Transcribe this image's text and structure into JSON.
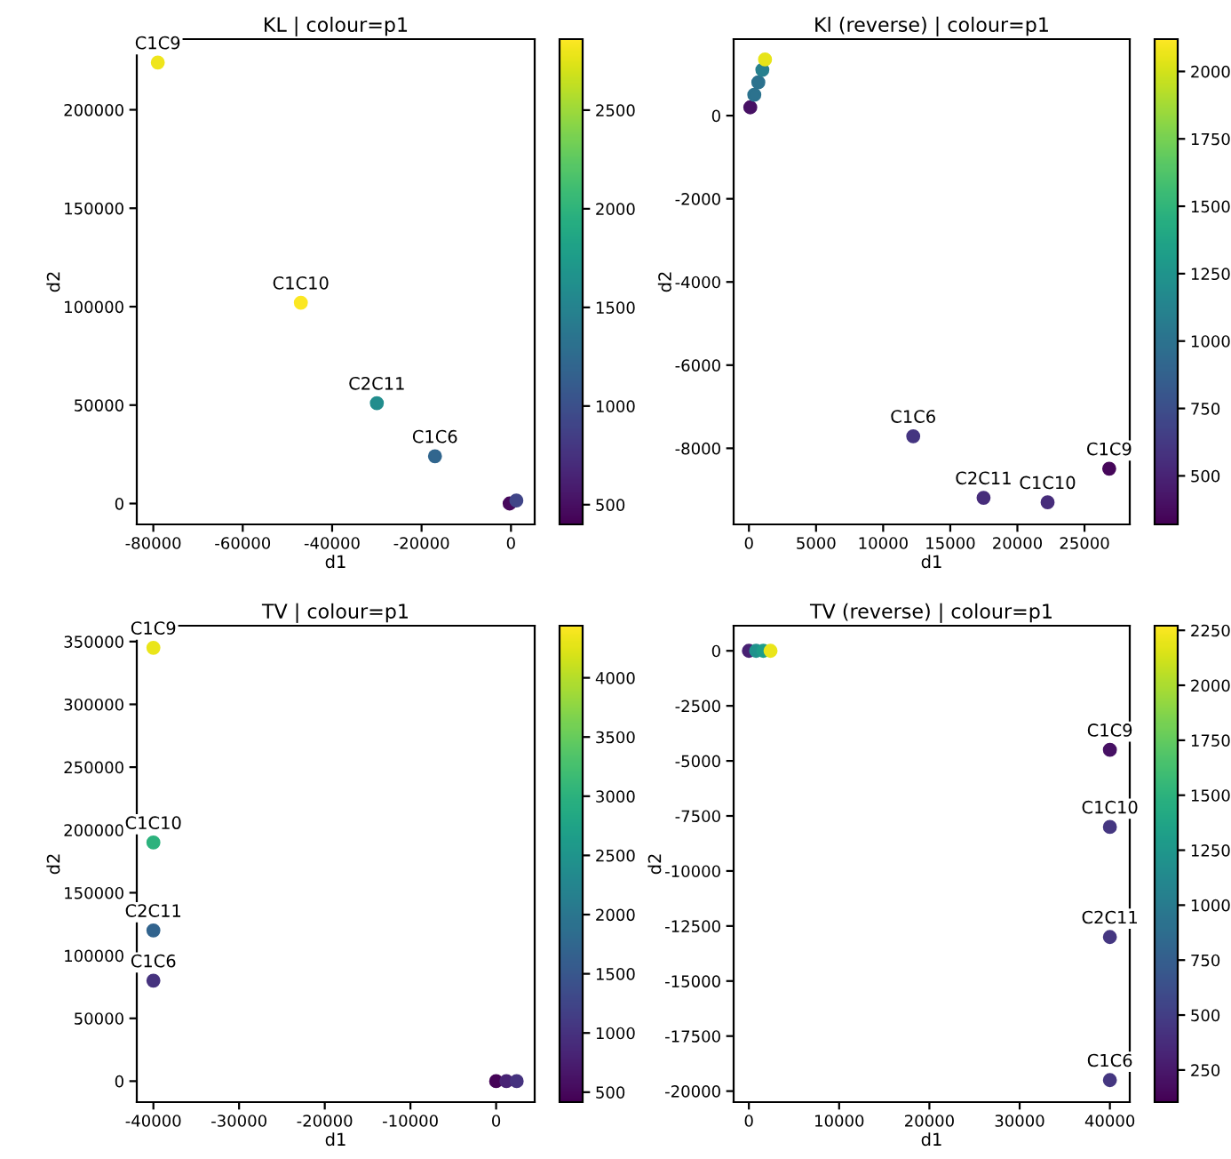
{
  "chart_data": [
    {
      "type": "scatter",
      "title": "KL | colour=p1",
      "xlabel": "d1",
      "ylabel": "d2",
      "x": [
        -79000,
        -47000,
        -30000,
        -17000,
        -300,
        1200
      ],
      "values": [
        224000,
        102000,
        51000,
        24000,
        0,
        1500
      ],
      "cvalues": [
        2800,
        2850,
        1600,
        1200,
        450,
        900
      ],
      "xlim": [
        -83700,
        5300
      ],
      "xticks": [
        -80000,
        -60000,
        -40000,
        -20000,
        0
      ],
      "ylim": [
        -10600,
        235900
      ],
      "yticks": [
        0,
        50000,
        100000,
        150000,
        200000
      ],
      "clim": [
        400,
        2860
      ],
      "cticks": [
        500,
        1000,
        1500,
        2000,
        2500
      ],
      "grid": false,
      "marker": "circle",
      "annotations": [
        {
          "text": "C1C9",
          "x": -79000,
          "y": 224000
        },
        {
          "text": "C1C10",
          "x": -47000,
          "y": 102000
        },
        {
          "text": "C2C11",
          "x": -30000,
          "y": 51000
        },
        {
          "text": "C1C6",
          "x": -17000,
          "y": 24000
        }
      ]
    },
    {
      "type": "scatter",
      "title": "Kl (reverse) | colour=p1",
      "xlabel": "d1",
      "ylabel": "d2",
      "x": [
        12240,
        17480,
        22250,
        26840,
        100,
        400,
        700,
        1000,
        1200
      ],
      "values": [
        -7710,
        -9190,
        -9300,
        -8490,
        200,
        500,
        800,
        1100,
        1350
      ],
      "cvalues": [
        600,
        550,
        550,
        350,
        400,
        1000,
        1000,
        1100,
        2050
      ],
      "xlim": [
        -1140,
        28370
      ],
      "xticks": [
        0,
        5000,
        10000,
        15000,
        20000,
        25000
      ],
      "ylim": [
        -9830,
        1840
      ],
      "yticks": [
        -8000,
        -6000,
        -4000,
        -2000,
        0
      ],
      "clim": [
        320,
        2120
      ],
      "cticks": [
        500,
        750,
        1000,
        1250,
        1500,
        1750,
        2000
      ],
      "grid": false,
      "marker": "circle",
      "annotations": [
        {
          "text": "C1C6",
          "x": 12240,
          "y": -7710
        },
        {
          "text": "C2C11",
          "x": 17480,
          "y": -9190
        },
        {
          "text": "C1C10",
          "x": 22250,
          "y": -9300
        },
        {
          "text": "C1C9",
          "x": 26840,
          "y": -8490
        }
      ]
    },
    {
      "type": "scatter",
      "title": "TV | colour=p1",
      "xlabel": "d1",
      "ylabel": "d2",
      "x": [
        -40000,
        -40000,
        -40000,
        -40000,
        0,
        1200,
        2400
      ],
      "values": [
        345000,
        190000,
        120000,
        80000,
        0,
        0,
        0
      ],
      "cvalues": [
        4300,
        3000,
        1700,
        1000,
        450,
        800,
        1000
      ],
      "xlim": [
        -41940,
        4500
      ],
      "xticks": [
        -40000,
        -30000,
        -20000,
        -10000,
        0
      ],
      "ylim": [
        -16700,
        362600
      ],
      "yticks": [
        0,
        50000,
        100000,
        150000,
        200000,
        250000,
        300000,
        350000
      ],
      "clim": [
        416,
        4440
      ],
      "cticks": [
        500,
        1000,
        1500,
        2000,
        2500,
        3000,
        3500,
        4000
      ],
      "grid": false,
      "marker": "circle",
      "annotations": [
        {
          "text": "C1C9",
          "x": -40000,
          "y": 345000
        },
        {
          "text": "C1C10",
          "x": -40000,
          "y": 190000
        },
        {
          "text": "C2C11",
          "x": -40000,
          "y": 120000
        },
        {
          "text": "C1C6",
          "x": -40000,
          "y": 80000
        }
      ]
    },
    {
      "type": "scatter",
      "title": "TV (reverse) | colour=p1",
      "xlabel": "d1",
      "ylabel": "d2",
      "x": [
        40000,
        40000,
        40000,
        40000,
        0,
        800,
        1600,
        2400
      ],
      "values": [
        -4500,
        -8000,
        -13000,
        -19500,
        0,
        0,
        0,
        0
      ],
      "cvalues": [
        200,
        450,
        450,
        450,
        300,
        1200,
        1300,
        2200
      ],
      "xlim": [
        -1690,
        42200
      ],
      "xticks": [
        0,
        10000,
        20000,
        30000,
        40000
      ],
      "ylim": [
        -20500,
        1140
      ],
      "yticks": [
        -20000,
        -17500,
        -15000,
        -12500,
        -10000,
        -7500,
        -5000,
        -2500,
        0
      ],
      "clim": [
        104,
        2271
      ],
      "cticks": [
        250,
        500,
        750,
        1000,
        1250,
        1500,
        1750,
        2000,
        2250
      ],
      "grid": false,
      "marker": "circle",
      "annotations": [
        {
          "text": "C1C9",
          "x": 40000,
          "y": -4500
        },
        {
          "text": "C1C10",
          "x": 40000,
          "y": -8000
        },
        {
          "text": "C2C11",
          "x": 40000,
          "y": -13000
        },
        {
          "text": "C1C6",
          "x": 40000,
          "y": -19500
        }
      ]
    }
  ]
}
